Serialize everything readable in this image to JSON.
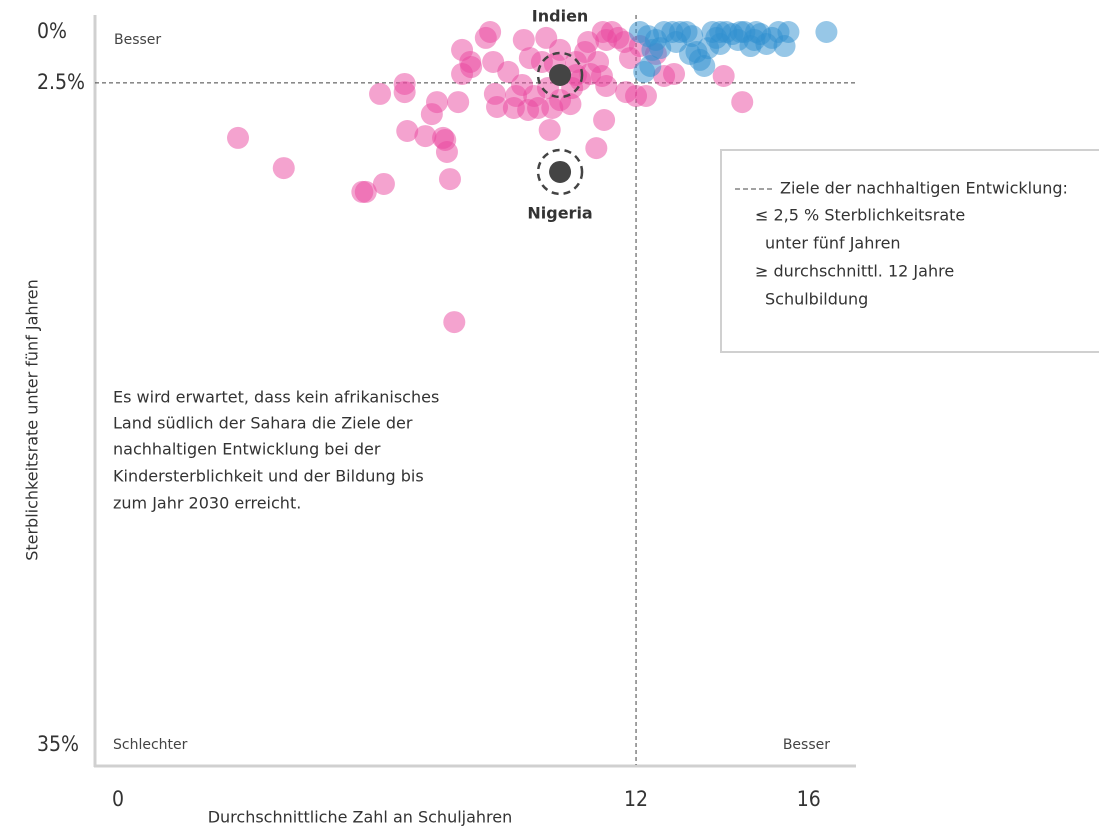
{
  "chart_data": {
    "type": "scatter",
    "y_label": "Sterblichkeitsrate unter fünf Jahren",
    "x_label": "Durchschnittliche Zahl an Schuljahren",
    "xlim": [
      0,
      17
    ],
    "xticks": [
      0,
      12,
      16
    ],
    "ylim": [
      0,
      35
    ],
    "yticks": [
      {
        "value": 0,
        "label": "0%"
      },
      {
        "value": 2.5,
        "label": "2.5%"
      },
      {
        "value": 35,
        "label": "35%"
      }
    ],
    "y_inverted": true,
    "corner_labels": {
      "top_left": "Besser",
      "bottom_left": "Schlechter",
      "bottom_right": "Besser"
    },
    "reference_lines": {
      "x": 12,
      "y": 2.5
    },
    "legend_box": {
      "title": "Ziele der nachhaltigen Entwicklung:",
      "lines": [
        "≤ 2,5 % Sterblichkeitsrate",
        "unter fünf Jahren",
        "≥ durchschnittl. 12 Jahre",
        "Schulbildung"
      ]
    },
    "note": [
      "Es wird erwartet, dass kein afrikanisches",
      "Land südlich der Sahara die Ziele der",
      "nachhaltigen Entwicklung bei der",
      "Kindersterblichkeit und der Bildung bis",
      "zum Jahr 2030 erreicht."
    ],
    "series": [
      {
        "color": "#e9489f",
        "x": [
          2.78,
          3.84,
          5.66,
          5.74,
          6.16,
          6.07,
          6.64,
          6.64,
          6.7,
          7.12,
          7.27,
          7.39,
          7.53,
          7.58,
          7.62,
          7.69,
          7.79,
          7.88,
          7.97,
          8.16,
          8.18,
          7.97,
          8.52,
          8.62,
          8.69,
          8.73,
          8.78,
          9.04,
          9.17,
          9.22,
          9.36,
          9.4,
          9.5,
          9.54,
          9.64,
          9.73,
          9.82,
          9.92,
          9.96,
          10.0,
          10.06,
          10.12,
          10.24,
          10.48,
          10.52,
          10.61,
          10.71,
          10.82,
          10.89,
          10.94,
          11.08,
          11.12,
          11.21,
          11.26,
          11.31,
          11.31,
          11.23,
          11.44,
          11.59,
          11.73,
          11.77,
          11.86,
          12.0,
          12.23,
          12.88,
          14.03,
          14.46,
          12.09,
          12.46,
          12.65,
          10.61,
          10.24
        ],
        "values": [
          5.2,
          6.68,
          7.85,
          7.85,
          7.46,
          3.04,
          2.55,
          2.95,
          4.86,
          5.11,
          4.03,
          3.44,
          5.2,
          5.3,
          5.89,
          7.22,
          14.24,
          3.44,
          2.06,
          1.47,
          1.72,
          0.88,
          0.29,
          0,
          1.47,
          3.04,
          3.68,
          1.96,
          3.73,
          3.14,
          2.6,
          0.39,
          3.83,
          1.28,
          3.14,
          3.73,
          1.47,
          0.29,
          2.75,
          4.81,
          3.73,
          1.57,
          0.88,
          3.54,
          2.75,
          1.47,
          2.36,
          0.98,
          0.49,
          2.06,
          5.7,
          1.47,
          2.16,
          4.32,
          2.65,
          0.39,
          0,
          0,
          0.29,
          0.49,
          2.95,
          1.28,
          3.14,
          3.14,
          2.06,
          2.16,
          3.44,
          0.69,
          1.08,
          2.16,
          2.11,
          3.34
        ]
      },
      {
        "color": "#2f8fcf",
        "x": [
          12.09,
          12.28,
          12.38,
          12.46,
          12.65,
          12.84,
          13.02,
          13.17,
          13.3,
          13.4,
          13.48,
          13.58,
          13.67,
          13.77,
          13.86,
          13.95,
          14.09,
          14.23,
          14.36,
          14.51,
          14.65,
          14.78,
          14.88,
          15.02,
          15.15,
          15.3,
          15.44,
          15.53,
          16.41,
          12.19,
          12.33,
          13.25,
          13.95,
          14.42,
          14.74,
          12.93,
          12.56
        ],
        "values": [
          0,
          0.2,
          0.88,
          0.39,
          0,
          0,
          0,
          0,
          0.2,
          0.98,
          1.37,
          1.67,
          0.79,
          0,
          0.29,
          0.59,
          0,
          0.1,
          0.39,
          0,
          0.69,
          0,
          0.1,
          0.59,
          0.29,
          0,
          0.69,
          0,
          0,
          1.96,
          1.67,
          1.08,
          0,
          0,
          0.39,
          0.49,
          0.79
        ]
      }
    ],
    "annotations": [
      {
        "label": "Indien",
        "x": 10.24,
        "y": 2.11,
        "color": "#444444"
      },
      {
        "label": "Nigeria",
        "x": 10.24,
        "y": 6.87,
        "color": "#444444"
      }
    ]
  }
}
